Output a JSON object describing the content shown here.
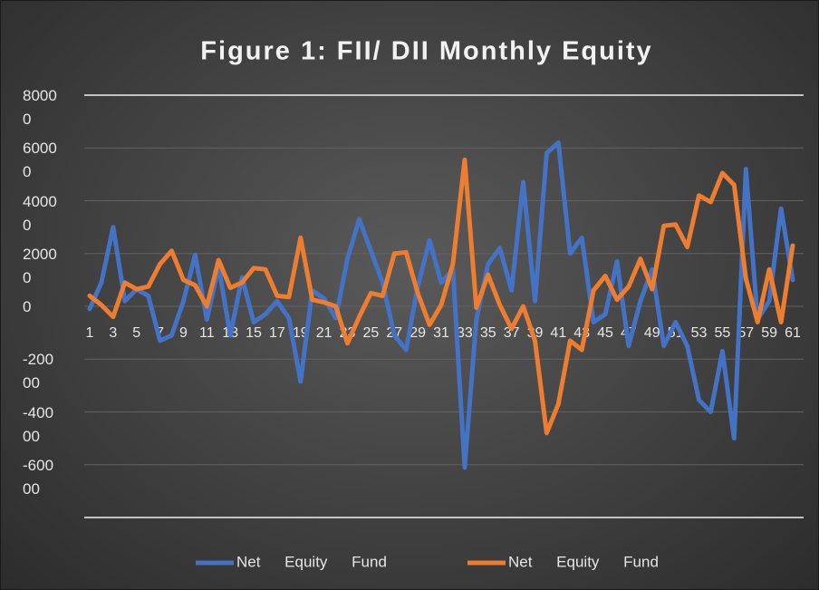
{
  "chart_data": {
    "type": "line",
    "title": "Figure 1: FII/ DII Monthly Equity",
    "categories": [
      "1",
      null,
      "3",
      null,
      "5",
      null,
      "7",
      null,
      "9",
      null,
      "11",
      null,
      "13",
      null,
      "15",
      null,
      "17",
      null,
      "19",
      null,
      "21",
      null,
      "23",
      null,
      "25",
      null,
      "27",
      null,
      "29",
      null,
      "31",
      null,
      "33",
      null,
      "35",
      null,
      "37",
      null,
      "39",
      null,
      "41",
      null,
      "43",
      null,
      "45",
      null,
      "47",
      null,
      "49",
      null,
      "51",
      null,
      "53",
      null,
      "55",
      null,
      "57",
      null,
      "59",
      null,
      "61"
    ],
    "series": [
      {
        "name": "Net Equity Fund",
        "color": "#4472c4",
        "values": [
          -1000,
          9000,
          30000,
          2000,
          6500,
          4000,
          -13000,
          -11000,
          2000,
          19500,
          -5000,
          15000,
          -11000,
          11000,
          -6000,
          -3000,
          2000,
          -4500,
          -28500,
          6000,
          3000,
          -4500,
          18000,
          33000,
          21000,
          9000,
          -11000,
          -16500,
          7500,
          25000,
          9000,
          14000,
          -61000,
          -5000,
          16000,
          22000,
          6000,
          47000,
          2000,
          58000,
          62000,
          20000,
          26000,
          -6000,
          -3000,
          17000,
          -15000,
          2000,
          14000,
          -15000,
          -6000,
          -15000,
          -35500,
          -40000,
          -17000,
          -50000,
          52000,
          -5000,
          2000,
          37000,
          10000
        ]
      },
      {
        "name": "Net Equity Fund",
        "color": "#ed7d31",
        "values": [
          4000,
          500,
          -4000,
          9000,
          6500,
          7500,
          16000,
          21000,
          10000,
          8000,
          0,
          17500,
          7000,
          9000,
          14500,
          14000,
          4000,
          3500,
          26000,
          2500,
          1500,
          0,
          -14000,
          -4000,
          5000,
          4000,
          20000,
          20500,
          5000,
          -7000,
          500,
          16000,
          55500,
          -500,
          12000,
          500,
          -8500,
          0,
          -13000,
          -48000,
          -37000,
          -13000,
          -16500,
          6000,
          11500,
          2500,
          7500,
          18000,
          6500,
          30500,
          31000,
          22500,
          42000,
          39500,
          50500,
          46000,
          10500,
          -6000,
          14000,
          -6000,
          23000
        ]
      }
    ],
    "ylim": [
      -80000,
      80000
    ],
    "yticks": [
      -80000,
      -60000,
      -40000,
      -20000,
      0,
      20000,
      40000,
      60000,
      80000
    ],
    "grid": true,
    "legend": "bottom"
  }
}
